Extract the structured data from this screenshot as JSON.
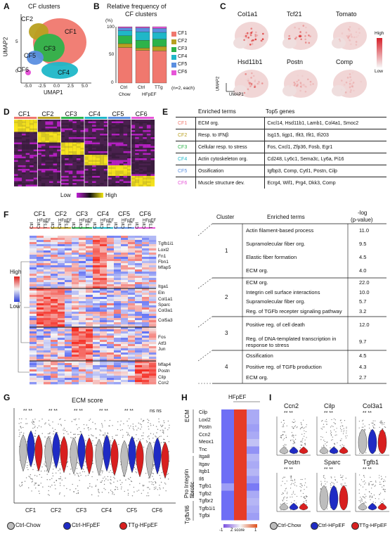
{
  "panels": {
    "A": "A",
    "B": "B",
    "C": "C",
    "D": "D",
    "E": "E",
    "F": "F",
    "G": "G",
    "H": "H",
    "I": "I"
  },
  "colors": {
    "CF1": "#f0786e",
    "CF2": "#b8a020",
    "CF3": "#2db34a",
    "CF4": "#1fb7c8",
    "CF5": "#5b8fe0",
    "CF6": "#e655d8",
    "chow": "#bdbdbd",
    "hfpef": "#1f2bc4",
    "ttg": "#d81f1f"
  },
  "A": {
    "title": "CF clusters",
    "xlabel": "UMAP1",
    "ylabel": "UMAP2",
    "clusters": [
      "CF1",
      "CF2",
      "CF3",
      "CF4",
      "CF5",
      "CF6"
    ],
    "xticks": [
      "-5.0",
      "-2.5",
      "0.0",
      "2.5",
      "5.0"
    ],
    "yticks": [
      "0",
      "5"
    ]
  },
  "B": {
    "title_line1": "Relative frequency of",
    "title_line2": "CF clusters",
    "unit": "(%)",
    "yticks": [
      "0",
      "50",
      "100"
    ],
    "bars": [
      "Ctrl",
      "Ctrl",
      "TTg"
    ],
    "groups": [
      "Chow",
      "HFpEF"
    ],
    "note": "(n=2, each)",
    "legend": [
      "CF1",
      "CF2",
      "CF3",
      "CF4",
      "CF5",
      "CF6"
    ]
  },
  "chart_data": [
    {
      "type": "bar",
      "title": "Relative frequency of CF clusters",
      "categories": [
        "Chow Ctrl",
        "HFpEF Ctrl",
        "HFpEF TTg"
      ],
      "ylabel": "(%)",
      "ylim": [
        0,
        100
      ],
      "series": [
        {
          "name": "CF1",
          "values": [
            63,
            58,
            57
          ]
        },
        {
          "name": "CF2",
          "values": [
            7,
            4,
            8
          ]
        },
        {
          "name": "CF3",
          "values": [
            14,
            14,
            13
          ]
        },
        {
          "name": "CF4",
          "values": [
            9,
            15,
            12
          ]
        },
        {
          "name": "CF5",
          "values": [
            5,
            7,
            7
          ]
        },
        {
          "name": "CF6",
          "values": [
            2,
            2,
            3
          ]
        }
      ]
    }
  ],
  "C": {
    "genes": [
      "Col1a1",
      "Tcf21",
      "Tomato",
      "Hsd11b1",
      "Postn",
      "Comp"
    ],
    "high": "High",
    "low": "Low",
    "umap1": "UMAP1",
    "umap2": "UMAP2"
  },
  "D": {
    "clusters": [
      "CF1",
      "CF2",
      "CF3",
      "CF4",
      "CF5",
      "CF6"
    ],
    "low": "Low",
    "high": "High"
  },
  "E": {
    "h1": "Enriched terms",
    "h2": "Top5 genes",
    "rows": [
      {
        "c": "CF1",
        "term": "ECM org.",
        "genes": "Cxcl14, Hsd11b1, Lamb1, Col4a1, Smoc2"
      },
      {
        "c": "CF2",
        "term": "Resp. to IFNβ",
        "genes": "Isg15, Iigp1, Ifit3, Ifit1, Ifi203"
      },
      {
        "c": "CF3",
        "term": "Cellular resp. to stress",
        "genes": "Fos, Cxcl1, Zfp36, Fosb, Egr1"
      },
      {
        "c": "CF4",
        "term": "Actin cytoskeleton org.",
        "genes": "Cd248, Ly6c1, Sema3c, Ly6a, Pi16"
      },
      {
        "c": "CF5",
        "term": "Ossification",
        "genes": "Igfbp3, Comp, Cytl1, Postn, Cilp"
      },
      {
        "c": "CF6",
        "term": "Muscle structure dev.",
        "genes": "Ecrg4, Wif1, Prg4, Dkk3, Comp"
      }
    ]
  },
  "F": {
    "clusters": [
      "CF1",
      "CF2",
      "CF3",
      "CF4",
      "CF5",
      "CF6"
    ],
    "hfpef": "HFpEF",
    "cols": [
      "Ctrl",
      "Ctrl",
      "TTg"
    ],
    "high": "High",
    "low": "Low",
    "genes": [
      "Tgfb1i1",
      "Loxl2",
      "Fn1",
      "Fbn1",
      "Mfap5",
      "Itga1",
      "Eln",
      "Col1a1",
      "Sparc",
      "Col3a1",
      "Col5a3",
      "Fos",
      "Atf3",
      "Jun",
      "Mfap4",
      "Postn",
      "Cilp",
      "Ccn2"
    ],
    "h_cluster": "Cluster",
    "h_terms": "Enriched terms",
    "h_p1": "-log",
    "h_p2": "(p-value)",
    "rows": [
      {
        "k": "1",
        "terms": [
          [
            "Actin filament-based process",
            "11.0"
          ],
          [
            "Supramolecular fiber org.",
            "9.5"
          ],
          [
            "Elastic fiber formation",
            "4.5"
          ],
          [
            "ECM org.",
            "4.0"
          ]
        ]
      },
      {
        "k": "2",
        "terms": [
          [
            "ECM org.",
            "22.0"
          ],
          [
            "Integrin cell surface interactions",
            "10.0"
          ],
          [
            "Supramolecular fiber org.",
            "5.7"
          ],
          [
            "Reg. of TGFb recepter signaling pathway",
            "3.2"
          ]
        ]
      },
      {
        "k": "3",
        "terms": [
          [
            "Positive reg. of cell death",
            "12.0"
          ],
          [
            "Reg. of DNA-templated transcription in response to stress",
            "9.7"
          ]
        ]
      },
      {
        "k": "4",
        "terms": [
          [
            "Ossification",
            "4.5"
          ],
          [
            "Positive reg. of TGFb production",
            "4.3"
          ],
          [
            "ECM org.",
            "2.7"
          ]
        ]
      }
    ]
  },
  "G": {
    "title": "ECM score",
    "cats": [
      "CF1",
      "CF2",
      "CF3",
      "CF4",
      "CF5",
      "CF6"
    ],
    "sig": [
      "** **",
      "** **",
      "** **",
      "** **",
      "** **",
      "ns ns"
    ],
    "legend": [
      "Ctrl-Chow",
      "Ctrl-HFpEF",
      "TTg-HFpEF"
    ]
  },
  "H": {
    "hfpef": "HFpEF",
    "cols": [
      "Ctrl",
      "Ctrl",
      "TTg"
    ],
    "groups": [
      "ECM",
      "Pro Integrin fibrotic",
      "Tgfb/Il6"
    ],
    "genes": [
      "Cilp",
      "Loxl2",
      "Postn",
      "Ccn2",
      "Meox1",
      "Tnc",
      "Itga8",
      "Itgav",
      "Itgb1",
      "Il6",
      "Tgfb1",
      "Tgfb2",
      "Tgfbr2",
      "Tgfb1i1",
      "Tgfbi"
    ],
    "scale": [
      "-1",
      "Z score",
      "1"
    ]
  },
  "I": {
    "genes": [
      "Ccn2",
      "Cilp",
      "Col3a1",
      "Postn",
      "Sparc",
      "Tgfb1"
    ],
    "sig": "** **",
    "legend": [
      "Ctrl-Chow",
      "Ctrl-HFpEF",
      "TTg-HFpEF"
    ]
  }
}
